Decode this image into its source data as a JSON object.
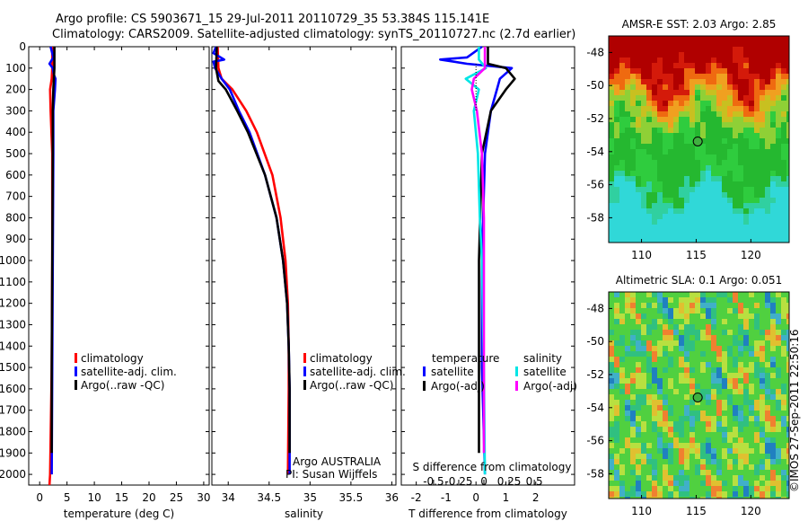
{
  "header": {
    "line1": "Argo profile: CS 5903671_15 29-Jul-2011 20110729_35 53.384S 115.141E",
    "line2": "Climatology: CARS2009. Satellite-adjusted climatology: synTS_20110727.nc (2.7d earlier)"
  },
  "timestamp": "©IMOS 27-Sep-2011 22:50:16",
  "colors": {
    "red": "#ff0000",
    "blue": "#0000ff",
    "black": "#000000",
    "cyan": "#00e5e5",
    "magenta": "#ff00ff"
  },
  "chart_data": [
    {
      "type": "line",
      "xlabel": "temperature (deg C)",
      "ylabel": "",
      "xlim": [
        -2,
        31
      ],
      "ylim": [
        2050,
        0
      ],
      "xticks": [
        0,
        5,
        10,
        15,
        20,
        25,
        30
      ],
      "yticks": [
        0,
        100,
        200,
        300,
        400,
        500,
        600,
        700,
        800,
        900,
        1000,
        1100,
        1200,
        1300,
        1400,
        1500,
        1600,
        1700,
        1800,
        1900,
        2000
      ],
      "legend": {
        "position": "middle-right",
        "entries": [
          "climatology",
          "satellite-adj. clim.",
          "Argo(..raw -QC)"
        ]
      },
      "series": [
        {
          "name": "climatology",
          "color": "#ff0000",
          "depth": [
            0,
            100,
            150,
            200,
            300,
            500,
            1000,
            1500,
            2000,
            2050
          ],
          "values": [
            2.3,
            2.3,
            2.2,
            1.9,
            2.0,
            2.3,
            2.3,
            2.2,
            1.9,
            1.8
          ]
        },
        {
          "name": "satellite-adj. clim.",
          "color": "#0000ff",
          "depth": [
            0,
            50,
            80,
            100,
            130,
            150,
            200,
            300,
            500,
            1000,
            1500,
            2000
          ],
          "values": [
            2.0,
            2.5,
            1.8,
            2.4,
            2.6,
            2.9,
            2.8,
            2.5,
            2.5,
            2.4,
            2.3,
            2.2
          ]
        },
        {
          "name": "Argo(..raw -QC)",
          "color": "#000000",
          "depth": [
            0,
            100,
            150,
            200,
            300,
            500,
            1000,
            1500,
            1900
          ],
          "values": [
            2.7,
            2.7,
            2.6,
            2.5,
            2.4,
            2.4,
            2.3,
            2.2,
            2.2
          ]
        }
      ]
    },
    {
      "type": "line",
      "xlabel": "salinity",
      "ylabel": "",
      "xlim": [
        33.8,
        36.05
      ],
      "ylim": [
        2050,
        0
      ],
      "xticks": [
        34,
        34.5,
        35,
        35.5,
        36
      ],
      "xticklabels": [
        "34",
        "34.5",
        "35",
        "35.5",
        "36"
      ],
      "legend": {
        "position": "middle-right",
        "entries": [
          "climatology",
          "satellite-adj. clim.",
          "Argo(..raw -QC)"
        ]
      },
      "annotation": {
        "line1": "Argo AUSTRALIA",
        "line2": "PI: Susan Wijffels"
      },
      "series": [
        {
          "name": "climatology",
          "color": "#ff0000",
          "depth": [
            0,
            100,
            150,
            200,
            300,
            400,
            600,
            800,
            1000,
            1200,
            1400,
            1600,
            2000
          ],
          "values": [
            33.87,
            33.88,
            33.92,
            34.05,
            34.22,
            34.35,
            34.54,
            34.64,
            34.7,
            34.73,
            34.74,
            34.74,
            34.73
          ]
        },
        {
          "name": "satellite-adj. clim.",
          "color": "#0000ff",
          "depth": [
            0,
            30,
            60,
            70,
            100,
            150,
            200,
            300,
            400,
            600,
            800,
            1000,
            1200,
            1400,
            1600,
            2000
          ],
          "values": [
            33.85,
            33.82,
            33.95,
            33.82,
            33.84,
            33.92,
            34.02,
            34.13,
            34.26,
            34.45,
            34.59,
            34.67,
            34.72,
            34.74,
            34.75,
            34.75
          ]
        },
        {
          "name": "Argo(..raw -QC)",
          "color": "#000000",
          "depth": [
            0,
            100,
            160,
            200,
            300,
            400,
            600,
            800,
            1000,
            1200,
            1400,
            1600,
            1900
          ],
          "values": [
            33.86,
            33.85,
            33.88,
            33.97,
            34.11,
            34.24,
            34.45,
            34.59,
            34.67,
            34.72,
            34.74,
            34.75,
            34.75
          ]
        }
      ]
    },
    {
      "type": "line",
      "xlabel": "T difference from climatology",
      "xlabel2": "S difference from climatology",
      "xlim": [
        -2.5,
        3.3
      ],
      "xlim_top": [
        -0.82,
        0.9
      ],
      "ylim": [
        2050,
        0
      ],
      "xticks": [
        -2,
        -1,
        0,
        1,
        2
      ],
      "xticks2": [
        -0.5,
        -0.25,
        0,
        0.25,
        0.5
      ],
      "xticklabels2": [
        "-0.5",
        "-0.25",
        "0",
        "0.25",
        "0.5"
      ],
      "legend": {
        "position": "bottom",
        "group1": "temperature",
        "group2": "salinity",
        "entries": [
          "satellite",
          "Argo(-adj)",
          "satellite",
          "Argo(-adj)"
        ]
      },
      "series": [
        {
          "name": "satellite",
          "group": "temperature",
          "color": "#0000ff",
          "depth": [
            0,
            50,
            60,
            80,
            100,
            150,
            200,
            300,
            500,
            1000,
            1500,
            2000
          ],
          "values": [
            0.2,
            -0.3,
            -1.2,
            -0.3,
            1.2,
            0.8,
            0.7,
            0.5,
            0.3,
            0.2,
            0.2,
            0.3
          ]
        },
        {
          "name": "Argo(-adj)",
          "group": "temperature",
          "color": "#000000",
          "depth": [
            0,
            80,
            100,
            150,
            200,
            300,
            500,
            1000,
            1500,
            1900
          ],
          "values": [
            0.4,
            0.4,
            1.0,
            1.3,
            1.0,
            0.5,
            0.2,
            0.1,
            0.1,
            0.1
          ]
        },
        {
          "name": "satellite",
          "group": "salinity",
          "color": "#00e5e5",
          "depth": [
            0,
            60,
            100,
            150,
            200,
            300,
            500,
            800,
            1000,
            1500,
            2000
          ],
          "values": [
            -0.05,
            -0.05,
            0.02,
            -0.18,
            -0.05,
            -0.1,
            -0.06,
            -0.04,
            -0.02,
            0.0,
            0.01
          ]
        },
        {
          "name": "Argo(-adj)",
          "group": "salinity",
          "color": "#ff00ff",
          "depth": [
            0,
            100,
            150,
            200,
            300,
            500,
            800,
            1000,
            1500,
            1900
          ],
          "values": [
            0.01,
            0.01,
            -0.1,
            -0.12,
            -0.07,
            -0.02,
            0.0,
            0.0,
            0.0,
            0.0
          ]
        }
      ]
    },
    {
      "type": "heatmap",
      "title": "AMSR-E SST: 2.03 Argo: 2.85",
      "xlim": [
        107,
        123.5
      ],
      "ylim": [
        -59.5,
        -47
      ],
      "xticks": [
        110,
        115,
        120
      ],
      "yticks": [
        -48,
        -50,
        -52,
        -54,
        -56,
        -58
      ],
      "marker": {
        "lon": 115.141,
        "lat": -53.384
      }
    },
    {
      "type": "heatmap",
      "title": "Altimetric SLA: 0.1 Argo: 0.051",
      "xlim": [
        107,
        123.5
      ],
      "ylim": [
        -59.5,
        -47
      ],
      "xticks": [
        110,
        115,
        120
      ],
      "yticks": [
        -48,
        -50,
        -52,
        -54,
        -56,
        -58
      ],
      "marker": {
        "lon": 115.141,
        "lat": -53.384
      }
    }
  ]
}
